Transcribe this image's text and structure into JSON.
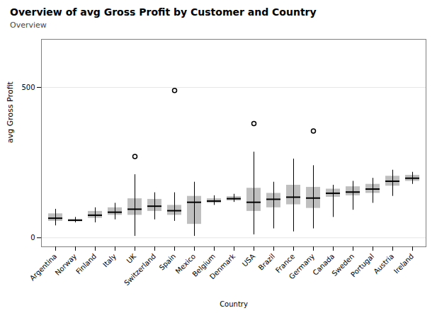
{
  "chart_data": {
    "type": "box",
    "title": "Overview of avg Gross Profit by Customer and Country",
    "subtitle": "Overview",
    "xlabel": "Country",
    "ylabel": "avg Gross Profit",
    "categories": [
      "Argentina",
      "Norway",
      "Finland",
      "Italy",
      "UK",
      "Switzerland",
      "Spain",
      "Mexico",
      "Belgium",
      "Denmark",
      "USA",
      "Brazil",
      "France",
      "Germany",
      "Canada",
      "Sweden",
      "Portugal",
      "Austria",
      "Ireland"
    ],
    "whislo": [
      40,
      50,
      50,
      60,
      5,
      60,
      55,
      5,
      108,
      118,
      10,
      30,
      20,
      30,
      68,
      92,
      115,
      138,
      178
    ],
    "q1": [
      55,
      55,
      65,
      75,
      75,
      88,
      75,
      45,
      115,
      123,
      88,
      100,
      110,
      98,
      135,
      140,
      148,
      172,
      188
    ],
    "med": [
      65,
      58,
      75,
      85,
      95,
      105,
      90,
      118,
      122,
      130,
      118,
      128,
      135,
      132,
      148,
      152,
      162,
      188,
      198
    ],
    "q3": [
      80,
      62,
      88,
      100,
      130,
      128,
      108,
      138,
      130,
      137,
      165,
      148,
      175,
      168,
      162,
      170,
      178,
      205,
      208
    ],
    "whishi": [
      95,
      68,
      100,
      115,
      210,
      150,
      150,
      185,
      140,
      145,
      285,
      185,
      262,
      240,
      175,
      188,
      198,
      225,
      218
    ],
    "fliers": [
      [],
      [],
      [],
      [],
      [
        270
      ],
      [],
      [
        490
      ],
      [],
      [],
      [],
      [
        380
      ],
      [],
      [],
      [
        355
      ],
      [],
      [],
      [],
      [],
      []
    ],
    "ylim": [
      -30,
      660
    ],
    "yticks": [
      0,
      500
    ],
    "grid": true
  }
}
